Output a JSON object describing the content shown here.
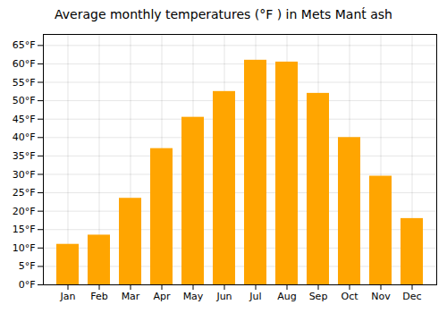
{
  "chart_data": {
    "type": "bar",
    "title": "Average monthly temperatures (°F ) in Mets Mant́​ ash",
    "categories": [
      "Jan",
      "Feb",
      "Mar",
      "Apr",
      "May",
      "Jun",
      "Jul",
      "Aug",
      "Sep",
      "Oct",
      "Nov",
      "Dec"
    ],
    "values": [
      11,
      13.5,
      23.5,
      37,
      45.5,
      52.5,
      61,
      60.5,
      52,
      40,
      29.5,
      18
    ],
    "color": "#FFA500",
    "ylim": [
      0,
      68
    ],
    "yticks": [
      {
        "value": 0,
        "label": "0°F"
      },
      {
        "value": 5,
        "label": "5°F"
      },
      {
        "value": 10,
        "label": "10°F"
      },
      {
        "value": 15,
        "label": "15°F"
      },
      {
        "value": 20,
        "label": "20°F"
      },
      {
        "value": 25,
        "label": "25°F"
      },
      {
        "value": 30,
        "label": "30°F"
      },
      {
        "value": 35,
        "label": "35°F"
      },
      {
        "value": 40,
        "label": "40°F"
      },
      {
        "value": 45,
        "label": "45°F"
      },
      {
        "value": 50,
        "label": "50°F"
      },
      {
        "value": 55,
        "label": "55°F"
      },
      {
        "value": 60,
        "label": "60°F"
      },
      {
        "value": 65,
        "label": "65°F"
      }
    ],
    "grid": true
  }
}
